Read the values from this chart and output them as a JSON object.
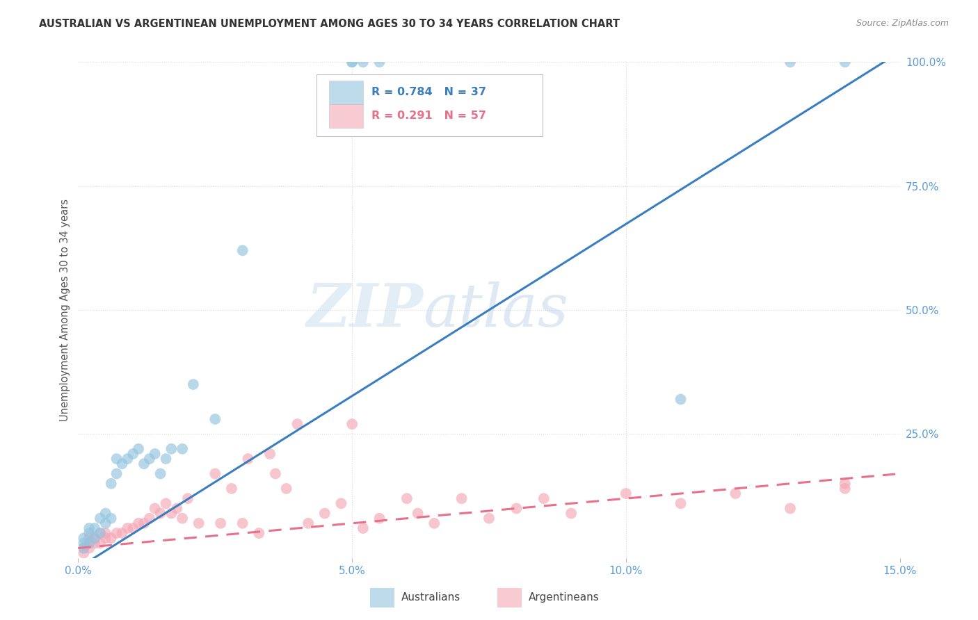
{
  "title": "AUSTRALIAN VS ARGENTINEAN UNEMPLOYMENT AMONG AGES 30 TO 34 YEARS CORRELATION CHART",
  "source": "Source: ZipAtlas.com",
  "ylabel": "Unemployment Among Ages 30 to 34 years",
  "watermark_zip": "ZIP",
  "watermark_atlas": "atlas",
  "xlim": [
    0.0,
    0.15
  ],
  "ylim": [
    0.0,
    1.0
  ],
  "blue_R": 0.784,
  "blue_N": 37,
  "pink_R": 0.291,
  "pink_N": 57,
  "blue_color": "#93c4e0",
  "pink_color": "#f4a7b5",
  "blue_line_color": "#3a7ebf",
  "pink_line_color": "#e8708a",
  "bg_color": "#ffffff",
  "grid_color": "#d8d8d8",
  "australians_x": [
    0.001,
    0.001,
    0.001,
    0.002,
    0.002,
    0.002,
    0.003,
    0.003,
    0.004,
    0.004,
    0.005,
    0.005,
    0.006,
    0.006,
    0.007,
    0.007,
    0.008,
    0.009,
    0.01,
    0.011,
    0.012,
    0.013,
    0.014,
    0.015,
    0.016,
    0.017,
    0.019,
    0.021,
    0.025,
    0.03,
    0.05,
    0.05,
    0.052,
    0.055,
    0.11,
    0.13,
    0.14
  ],
  "australians_y": [
    0.02,
    0.03,
    0.04,
    0.03,
    0.05,
    0.06,
    0.04,
    0.06,
    0.05,
    0.08,
    0.07,
    0.09,
    0.15,
    0.08,
    0.17,
    0.2,
    0.19,
    0.2,
    0.21,
    0.22,
    0.19,
    0.2,
    0.21,
    0.17,
    0.2,
    0.22,
    0.22,
    0.35,
    0.28,
    0.62,
    1.0,
    1.0,
    1.0,
    1.0,
    0.32,
    1.0,
    1.0
  ],
  "argentineans_x": [
    0.001,
    0.001,
    0.002,
    0.002,
    0.002,
    0.003,
    0.003,
    0.004,
    0.004,
    0.005,
    0.005,
    0.006,
    0.007,
    0.008,
    0.009,
    0.01,
    0.011,
    0.012,
    0.013,
    0.014,
    0.015,
    0.016,
    0.017,
    0.018,
    0.019,
    0.02,
    0.022,
    0.025,
    0.026,
    0.028,
    0.03,
    0.031,
    0.033,
    0.035,
    0.036,
    0.038,
    0.04,
    0.042,
    0.045,
    0.048,
    0.05,
    0.052,
    0.055,
    0.06,
    0.062,
    0.065,
    0.07,
    0.075,
    0.08,
    0.085,
    0.09,
    0.1,
    0.11,
    0.12,
    0.13,
    0.14,
    0.14
  ],
  "argentineans_y": [
    0.01,
    0.02,
    0.02,
    0.03,
    0.04,
    0.03,
    0.04,
    0.03,
    0.05,
    0.04,
    0.05,
    0.04,
    0.05,
    0.05,
    0.06,
    0.06,
    0.07,
    0.07,
    0.08,
    0.1,
    0.09,
    0.11,
    0.09,
    0.1,
    0.08,
    0.12,
    0.07,
    0.17,
    0.07,
    0.14,
    0.07,
    0.2,
    0.05,
    0.21,
    0.17,
    0.14,
    0.27,
    0.07,
    0.09,
    0.11,
    0.27,
    0.06,
    0.08,
    0.12,
    0.09,
    0.07,
    0.12,
    0.08,
    0.1,
    0.12,
    0.09,
    0.13,
    0.11,
    0.13,
    0.1,
    0.15,
    0.14
  ]
}
